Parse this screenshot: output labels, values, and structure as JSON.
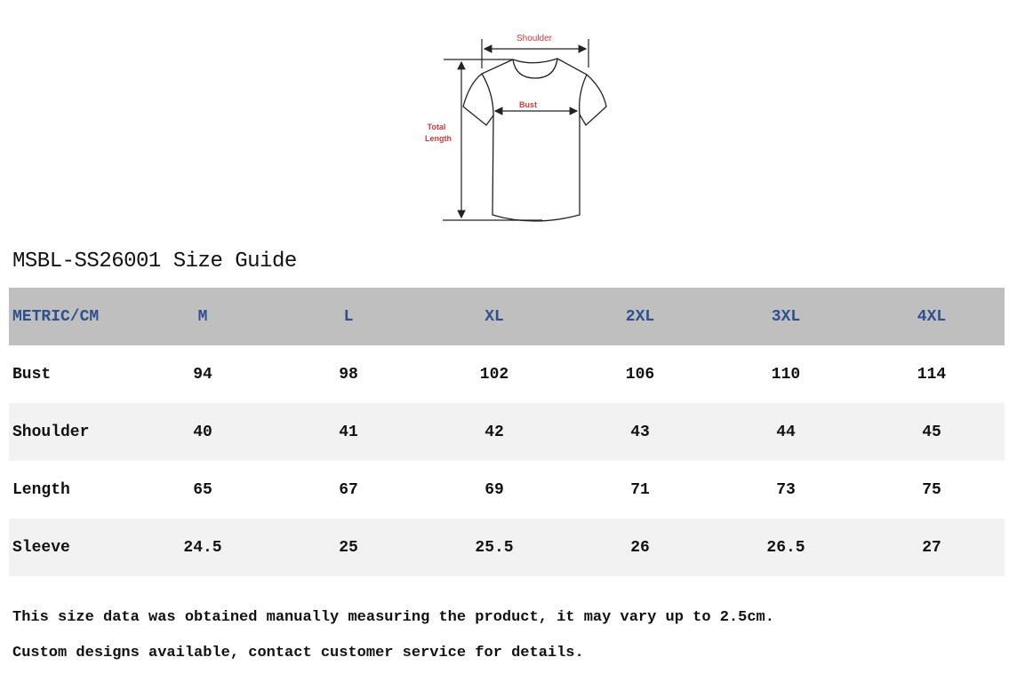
{
  "diagram": {
    "shoulder_label": "Shoulder",
    "bust_label": "Bust",
    "length_label_1": "Total",
    "length_label_2": "Length",
    "label_color": "#d03a3a"
  },
  "title": "MSBL-SS26001 Size Guide",
  "table": {
    "header": [
      "METRIC/CM",
      "M",
      "L",
      "XL",
      "2XL",
      "3XL",
      "4XL"
    ],
    "rows": [
      [
        "Bust",
        "94",
        "98",
        "102",
        "106",
        "110",
        "114"
      ],
      [
        "Shoulder",
        "40",
        "41",
        "42",
        "43",
        "44",
        "45"
      ],
      [
        "Length",
        "65",
        "67",
        "69",
        "71",
        "73",
        "75"
      ],
      [
        "Sleeve",
        "24.5",
        "25",
        "25.5",
        "26",
        "26.5",
        "27"
      ]
    ],
    "header_bg": "#bfbfbf",
    "header_text": "#2f4f8f",
    "alt_row_bg": "#f2f2f2"
  },
  "notes": [
    "This size data was obtained manually measuring the product, it may vary up to 2.5cm.",
    "Custom designs available, contact customer service for details."
  ]
}
